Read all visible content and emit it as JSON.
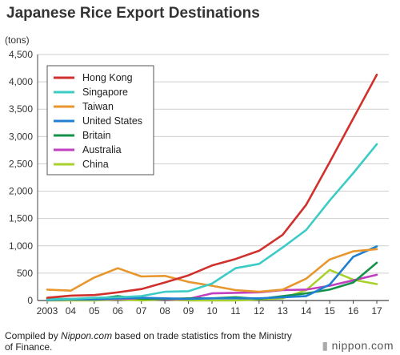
{
  "chart_data": {
    "type": "line",
    "title": "Japanese Rice Export Destinations",
    "ylabel": "(tons)",
    "xlabel": "",
    "categories": [
      "2003",
      "04",
      "05",
      "06",
      "07",
      "08",
      "09",
      "10",
      "11",
      "12",
      "13",
      "14",
      "15",
      "16",
      "17"
    ],
    "ylim": [
      0,
      4500
    ],
    "yticks": [
      "0",
      "500",
      "1,000",
      "1,500",
      "2,000",
      "2,500",
      "3,000",
      "3,500",
      "4,000",
      "4,500"
    ],
    "grid": true,
    "legend_position": "top-left",
    "series": [
      {
        "name": "Hong Kong",
        "color": "#d0312d",
        "values": [
          50,
          90,
          100,
          150,
          210,
          330,
          460,
          640,
          760,
          910,
          1200,
          1750,
          2530,
          3330,
          4130
        ]
      },
      {
        "name": "Singapore",
        "color": "#3ccbc5",
        "values": [
          20,
          30,
          50,
          60,
          80,
          160,
          170,
          310,
          590,
          670,
          970,
          1290,
          1830,
          2330,
          2860
        ]
      },
      {
        "name": "Taiwan",
        "color": "#e8962e",
        "values": [
          200,
          180,
          420,
          590,
          440,
          450,
          340,
          270,
          190,
          160,
          200,
          400,
          750,
          900,
          940
        ]
      },
      {
        "name": "United States",
        "color": "#1f7fd0",
        "values": [
          10,
          20,
          20,
          40,
          50,
          40,
          30,
          40,
          40,
          40,
          60,
          80,
          290,
          800,
          990
        ]
      },
      {
        "name": "Britain",
        "color": "#16914a",
        "values": [
          30,
          30,
          30,
          80,
          30,
          30,
          40,
          40,
          60,
          30,
          80,
          130,
          200,
          330,
          690
        ]
      },
      {
        "name": "Australia",
        "color": "#c13fc0",
        "values": [
          10,
          20,
          20,
          30,
          40,
          20,
          30,
          130,
          140,
          150,
          190,
          200,
          270,
          370,
          470
        ]
      },
      {
        "name": "China",
        "color": "#a8d12e",
        "values": [
          0,
          0,
          0,
          20,
          0,
          20,
          0,
          0,
          0,
          20,
          40,
          190,
          560,
          380,
          300
        ]
      }
    ],
    "footnote_prefix": "Compiled by ",
    "footnote_source": "Nippon.com",
    "footnote_suffix": " based on trade statistics from the Ministry of Finance.",
    "brand": "nippon.com"
  }
}
